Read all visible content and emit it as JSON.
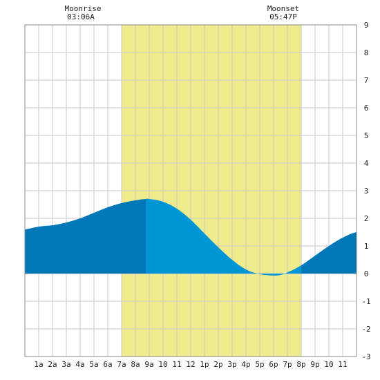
{
  "colors": {
    "daylight": "#f0eb8c",
    "tide_dark": "#0077b6",
    "tide_light": "#0096d6",
    "grid": "#c8c8c8",
    "frame": "#888888",
    "text": "#222222"
  },
  "moon": {
    "rise_label": "Moonrise",
    "rise_time": "03:06A",
    "set_label": "Moonset",
    "set_time": "05:47P"
  },
  "chart_data": {
    "type": "area",
    "title": "",
    "xlabel": "",
    "ylabel": "",
    "xlim": [
      0,
      24
    ],
    "ylim": [
      -3,
      9
    ],
    "grid": true,
    "x_tick_labels": [
      "1a",
      "2a",
      "3a",
      "4a",
      "5a",
      "6a",
      "7a",
      "8a",
      "9a",
      "10",
      "11",
      "12",
      "1p",
      "2p",
      "3p",
      "4p",
      "5p",
      "6p",
      "7p",
      "8p",
      "9p",
      "10",
      "11"
    ],
    "y_tick_labels": [
      "9",
      "8",
      "7",
      "6",
      "5",
      "4",
      "3",
      "2",
      "1",
      "0",
      "-1",
      "-2",
      "-3"
    ],
    "daylight_hours": [
      7.0,
      20.0
    ],
    "current_time_hour": 8.75,
    "series": [
      {
        "x": [
          0,
          1,
          2,
          3,
          4,
          5,
          6,
          7,
          8,
          8.75,
          9,
          10,
          11,
          12,
          13,
          14,
          15,
          16,
          17,
          18,
          18.5,
          19,
          20,
          21,
          22,
          23,
          24
        ],
        "y": [
          1.6,
          1.7,
          1.75,
          1.85,
          2.0,
          2.2,
          2.4,
          2.55,
          2.65,
          2.7,
          2.7,
          2.6,
          2.35,
          1.95,
          1.45,
          0.95,
          0.5,
          0.15,
          -0.02,
          -0.07,
          -0.05,
          0.05,
          0.3,
          0.65,
          1.0,
          1.3,
          1.5
        ]
      }
    ]
  }
}
